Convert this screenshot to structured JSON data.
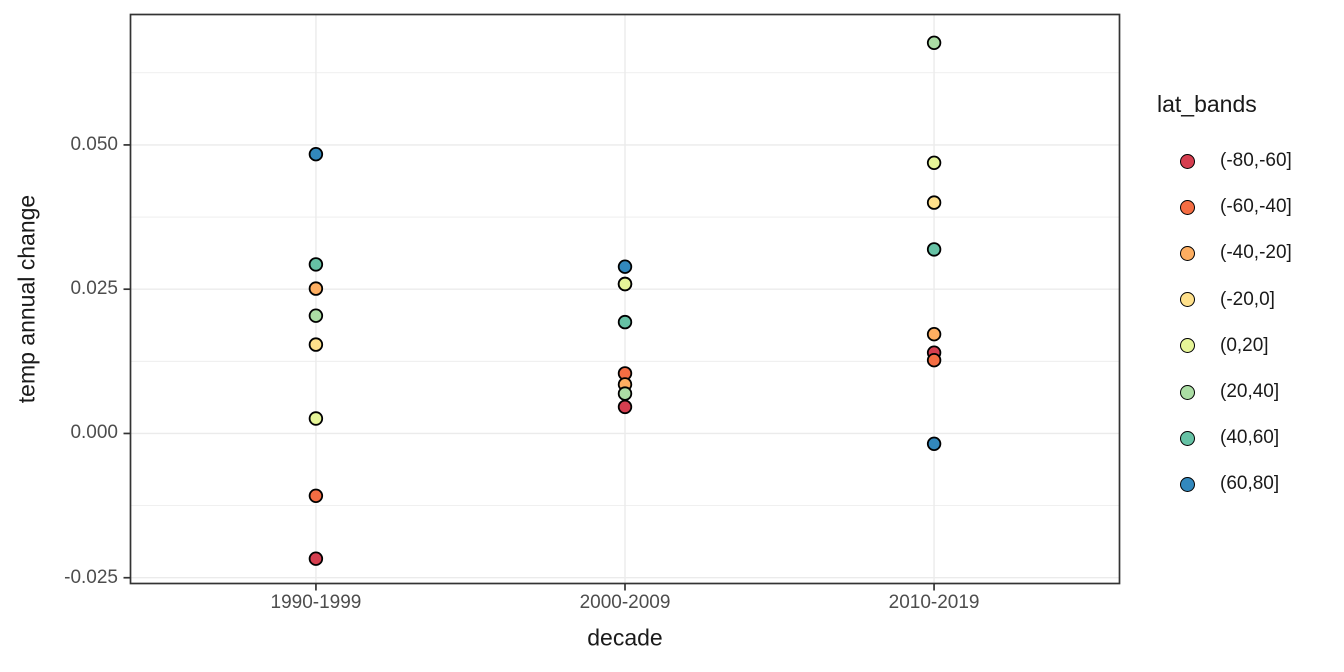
{
  "chart_data": {
    "type": "scatter",
    "title": "",
    "xlabel": "decade",
    "ylabel": "temp annual change",
    "categories": [
      "1990-1999",
      "2000-2009",
      "2010-2019"
    ],
    "series": [
      {
        "name": "(-80,-60]",
        "color": "#D53E4F",
        "values": [
          -0.0217,
          0.0046,
          0.014
        ]
      },
      {
        "name": "(-60,-40]",
        "color": "#F46D43",
        "values": [
          -0.0108,
          0.0104,
          0.0127
        ]
      },
      {
        "name": "(-40,-20]",
        "color": "#FDAE61",
        "values": [
          0.0251,
          0.0085,
          0.0172
        ]
      },
      {
        "name": "(-20,0]",
        "color": "#FEE08B",
        "values": [
          0.0154,
          0.0259,
          0.04
        ]
      },
      {
        "name": "(0,20]",
        "color": "#E6F598",
        "values": [
          0.0026,
          0.0259,
          0.0469
        ]
      },
      {
        "name": "(20,40]",
        "color": "#ABDDA4",
        "values": [
          0.0204,
          0.0069,
          0.0677
        ]
      },
      {
        "name": "(40,60]",
        "color": "#66C2A5",
        "values": [
          0.0293,
          0.0193,
          0.0319
        ]
      },
      {
        "name": "(60,80]",
        "color": "#3288BD",
        "values": [
          0.0484,
          0.0289,
          -0.0018
        ]
      }
    ],
    "ylim": [
      -0.026,
      0.0726
    ],
    "yticks": {
      "values": [
        0.05,
        0.025,
        0.0,
        -0.025
      ],
      "labels": [
        "0.050",
        "0.025",
        "0.000",
        "-0.025"
      ]
    },
    "yticks_minor": [
      0.0625,
      0.0375,
      0.0125,
      -0.0125
    ],
    "grid": {
      "major": true,
      "minor": true,
      "vertical_at_categories": true
    },
    "legend": {
      "title": "lat_bands",
      "position": "right"
    }
  },
  "styles": {
    "background": "#FFFFFF",
    "grid_color": "#EBEBEB",
    "panel_border_color": "#333333",
    "tick_mark_color": "#333333",
    "tick_label_color": "#4D4D4D",
    "title_color": "#1A1A1A",
    "point_stroke_color": "#000000"
  }
}
